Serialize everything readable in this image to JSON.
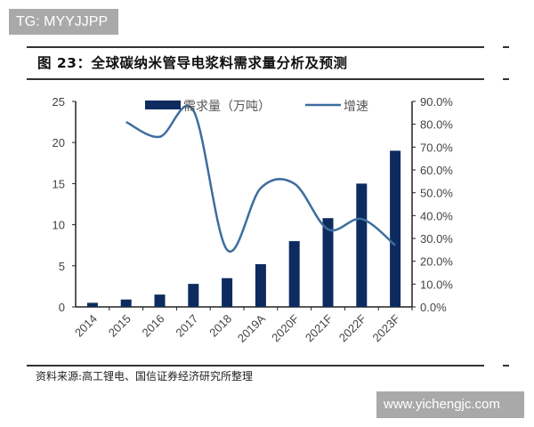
{
  "watermarks": {
    "top_left": "TG: MYYJJPP",
    "bottom_right": "www.yichengjc.com"
  },
  "figure_title": "图 23：全球碳纳米管导电浆料需求量分析及预测",
  "source": "资料来源:高工锂电、国信证券经济研究所整理",
  "chart_data": {
    "type": "bar+line",
    "categories": [
      "2014",
      "2015",
      "2016",
      "2017",
      "2018",
      "2019A",
      "2020F",
      "2021F",
      "2022F",
      "2023F"
    ],
    "series": [
      {
        "name": "需求量（万吨）",
        "type": "bar",
        "axis": "left",
        "color": "#0d2b5e",
        "values": [
          0.5,
          0.9,
          1.5,
          2.8,
          3.5,
          5.2,
          8.0,
          10.8,
          15.0,
          19.0
        ]
      },
      {
        "name": "增速",
        "type": "line",
        "axis": "right",
        "color": "#3d6d9e",
        "values": [
          null,
          0.81,
          0.745,
          0.86,
          0.25,
          0.52,
          0.54,
          0.34,
          0.385,
          0.27
        ]
      }
    ],
    "left_axis": {
      "ylim": [
        0,
        25
      ],
      "ticks": [
        "0",
        "5",
        "10",
        "15",
        "20",
        "25"
      ]
    },
    "right_axis": {
      "ylim": [
        0,
        0.9
      ],
      "ticks": [
        "0.0%",
        "10.0%",
        "20.0%",
        "30.0%",
        "40.0%",
        "50.0%",
        "60.0%",
        "70.0%",
        "80.0%",
        "90.0%"
      ]
    },
    "legend_placement": "top",
    "grid": false
  }
}
